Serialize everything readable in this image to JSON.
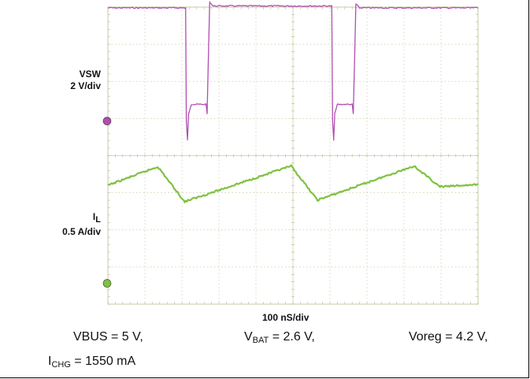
{
  "chart_data": {
    "type": "line",
    "title": "",
    "xlabel": "100 nS/div",
    "ylabel": "",
    "grid": true,
    "x_unit": "ns",
    "xlim": [
      0,
      1000
    ],
    "channels": [
      {
        "name_main": "VSW",
        "name_sub": "",
        "scale": "2 V/div",
        "color": "#b04db2",
        "series": {
          "name": "VSW",
          "points": [
            [
              0,
              6.1
            ],
            [
              210,
              6.1
            ],
            [
              212,
              0.0
            ],
            [
              215,
              -1.0
            ],
            [
              218,
              0.4
            ],
            [
              225,
              0.9
            ],
            [
              265,
              0.9
            ],
            [
              268,
              0.4
            ],
            [
              275,
              6.4
            ],
            [
              285,
              6.2
            ],
            [
              605,
              6.2
            ],
            [
              607,
              0.0
            ],
            [
              610,
              -1.0
            ],
            [
              613,
              0.4
            ],
            [
              620,
              0.9
            ],
            [
              660,
              0.9
            ],
            [
              663,
              0.4
            ],
            [
              670,
              6.3
            ],
            [
              680,
              6.1
            ],
            [
              1000,
              6.1
            ]
          ]
        }
      },
      {
        "name_main": "I",
        "name_sub": "L",
        "scale": "0.5 A/div",
        "color": "#7fc241",
        "series": {
          "name": "IL",
          "points": [
            [
              0,
              1.32
            ],
            [
              135,
              1.57
            ],
            [
              207,
              1.1
            ],
            [
              495,
              1.58
            ],
            [
              566,
              1.12
            ],
            [
              827,
              1.58
            ],
            [
              897,
              1.3
            ],
            [
              1000,
              1.33
            ]
          ]
        }
      }
    ]
  },
  "caption": {
    "vbus": "VBUS = 5 V,",
    "vbat_main": "V",
    "vbat_sub": "BAT",
    "vbat_rest": " = 2.6 V,",
    "voreg": "Voreg = 4.2 V,",
    "ichg_main": "I",
    "ichg_sub": "CHG",
    "ichg_rest": " = 1550 mA"
  }
}
